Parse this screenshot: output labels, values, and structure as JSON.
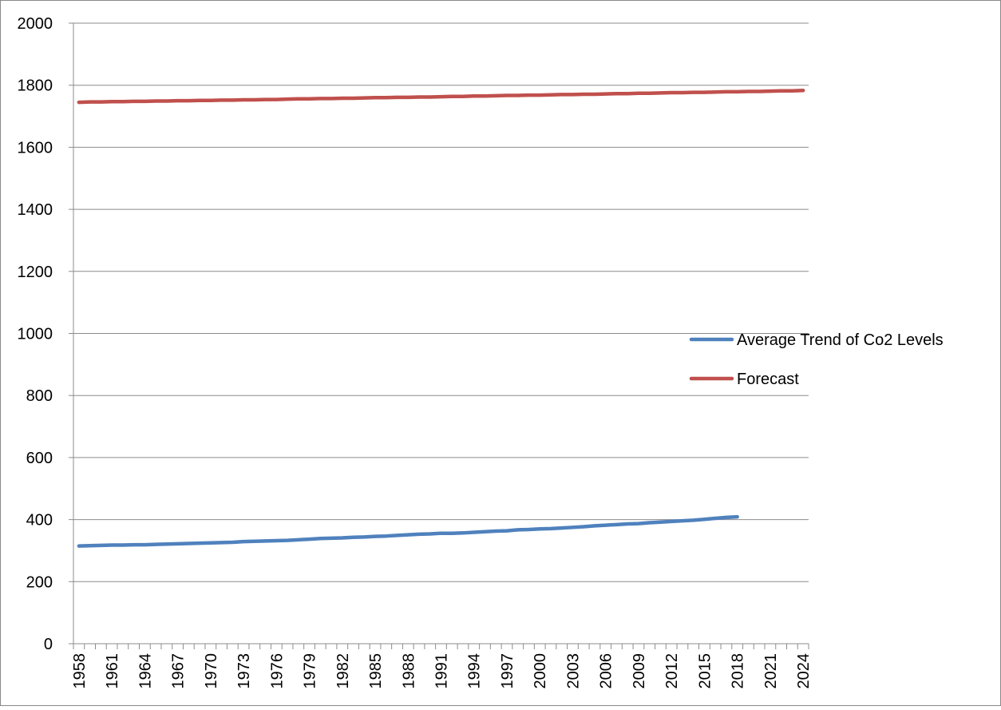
{
  "chart_data": {
    "type": "line",
    "title": "",
    "xlabel": "",
    "ylabel": "",
    "x": [
      1958,
      1959,
      1960,
      1961,
      1962,
      1963,
      1964,
      1965,
      1966,
      1967,
      1968,
      1969,
      1970,
      1971,
      1972,
      1973,
      1974,
      1975,
      1976,
      1977,
      1978,
      1979,
      1980,
      1981,
      1982,
      1983,
      1984,
      1985,
      1986,
      1987,
      1988,
      1989,
      1990,
      1991,
      1992,
      1993,
      1994,
      1995,
      1996,
      1997,
      1998,
      1999,
      2000,
      2001,
      2002,
      2003,
      2004,
      2005,
      2006,
      2007,
      2008,
      2009,
      2010,
      2011,
      2012,
      2013,
      2014,
      2015,
      2016,
      2017,
      2018,
      2019,
      2020,
      2021,
      2022,
      2023,
      2024
    ],
    "x_tick_labels": [
      "1958",
      "1961",
      "1964",
      "1967",
      "1970",
      "1973",
      "1976",
      "1979",
      "1982",
      "1985",
      "1988",
      "1991",
      "1994",
      "1997",
      "2000",
      "2003",
      "2006",
      "2009",
      "2012",
      "2015",
      "2018",
      "2021",
      "2024"
    ],
    "ylim": [
      0,
      2000
    ],
    "y_ticks": [
      0,
      200,
      400,
      600,
      800,
      1000,
      1200,
      1400,
      1600,
      1800,
      2000
    ],
    "grid": true,
    "legend_position": "right",
    "series": [
      {
        "name": "Average Trend of Co2 Levels",
        "color": "#4F81BD",
        "x": [
          1958,
          1959,
          1960,
          1961,
          1962,
          1963,
          1964,
          1965,
          1966,
          1967,
          1968,
          1969,
          1970,
          1971,
          1972,
          1973,
          1974,
          1975,
          1976,
          1977,
          1978,
          1979,
          1980,
          1981,
          1982,
          1983,
          1984,
          1985,
          1986,
          1987,
          1988,
          1989,
          1990,
          1991,
          1992,
          1993,
          1994,
          1995,
          1996,
          1997,
          1998,
          1999,
          2000,
          2001,
          2002,
          2003,
          2004,
          2005,
          2006,
          2007,
          2008,
          2009,
          2010,
          2011,
          2012,
          2013,
          2014,
          2015,
          2016,
          2017,
          2018
        ],
        "values": [
          315,
          316,
          317,
          318,
          318,
          319,
          319,
          320,
          321,
          322,
          323,
          324,
          325,
          326,
          327,
          329,
          330,
          331,
          332,
          333,
          335,
          337,
          339,
          340,
          341,
          343,
          344,
          346,
          347,
          349,
          351,
          353,
          354,
          356,
          356,
          357,
          359,
          361,
          363,
          364,
          367,
          368,
          370,
          371,
          373,
          375,
          377,
          380,
          382,
          384,
          386,
          387,
          390,
          392,
          394,
          396,
          398,
          401,
          404,
          407,
          409
        ]
      },
      {
        "name": "Forecast",
        "color": "#C0504D",
        "x": [
          1958,
          1959,
          1960,
          1961,
          1962,
          1963,
          1964,
          1965,
          1966,
          1967,
          1968,
          1969,
          1970,
          1971,
          1972,
          1973,
          1974,
          1975,
          1976,
          1977,
          1978,
          1979,
          1980,
          1981,
          1982,
          1983,
          1984,
          1985,
          1986,
          1987,
          1988,
          1989,
          1990,
          1991,
          1992,
          1993,
          1994,
          1995,
          1996,
          1997,
          1998,
          1999,
          2000,
          2001,
          2002,
          2003,
          2004,
          2005,
          2006,
          2007,
          2008,
          2009,
          2010,
          2011,
          2012,
          2013,
          2014,
          2015,
          2016,
          2017,
          2018,
          2019,
          2020,
          2021,
          2022,
          2023,
          2024
        ],
        "values": [
          1745,
          1746,
          1746,
          1747,
          1747,
          1748,
          1748,
          1749,
          1749,
          1750,
          1750,
          1751,
          1751,
          1752,
          1752,
          1753,
          1753,
          1754,
          1754,
          1755,
          1756,
          1756,
          1757,
          1757,
          1758,
          1758,
          1759,
          1760,
          1760,
          1761,
          1761,
          1762,
          1762,
          1763,
          1764,
          1764,
          1765,
          1765,
          1766,
          1767,
          1767,
          1768,
          1768,
          1769,
          1770,
          1770,
          1771,
          1771,
          1772,
          1773,
          1773,
          1774,
          1774,
          1775,
          1776,
          1776,
          1777,
          1777,
          1778,
          1779,
          1779,
          1780,
          1780,
          1781,
          1782,
          1782,
          1783
        ]
      }
    ]
  }
}
